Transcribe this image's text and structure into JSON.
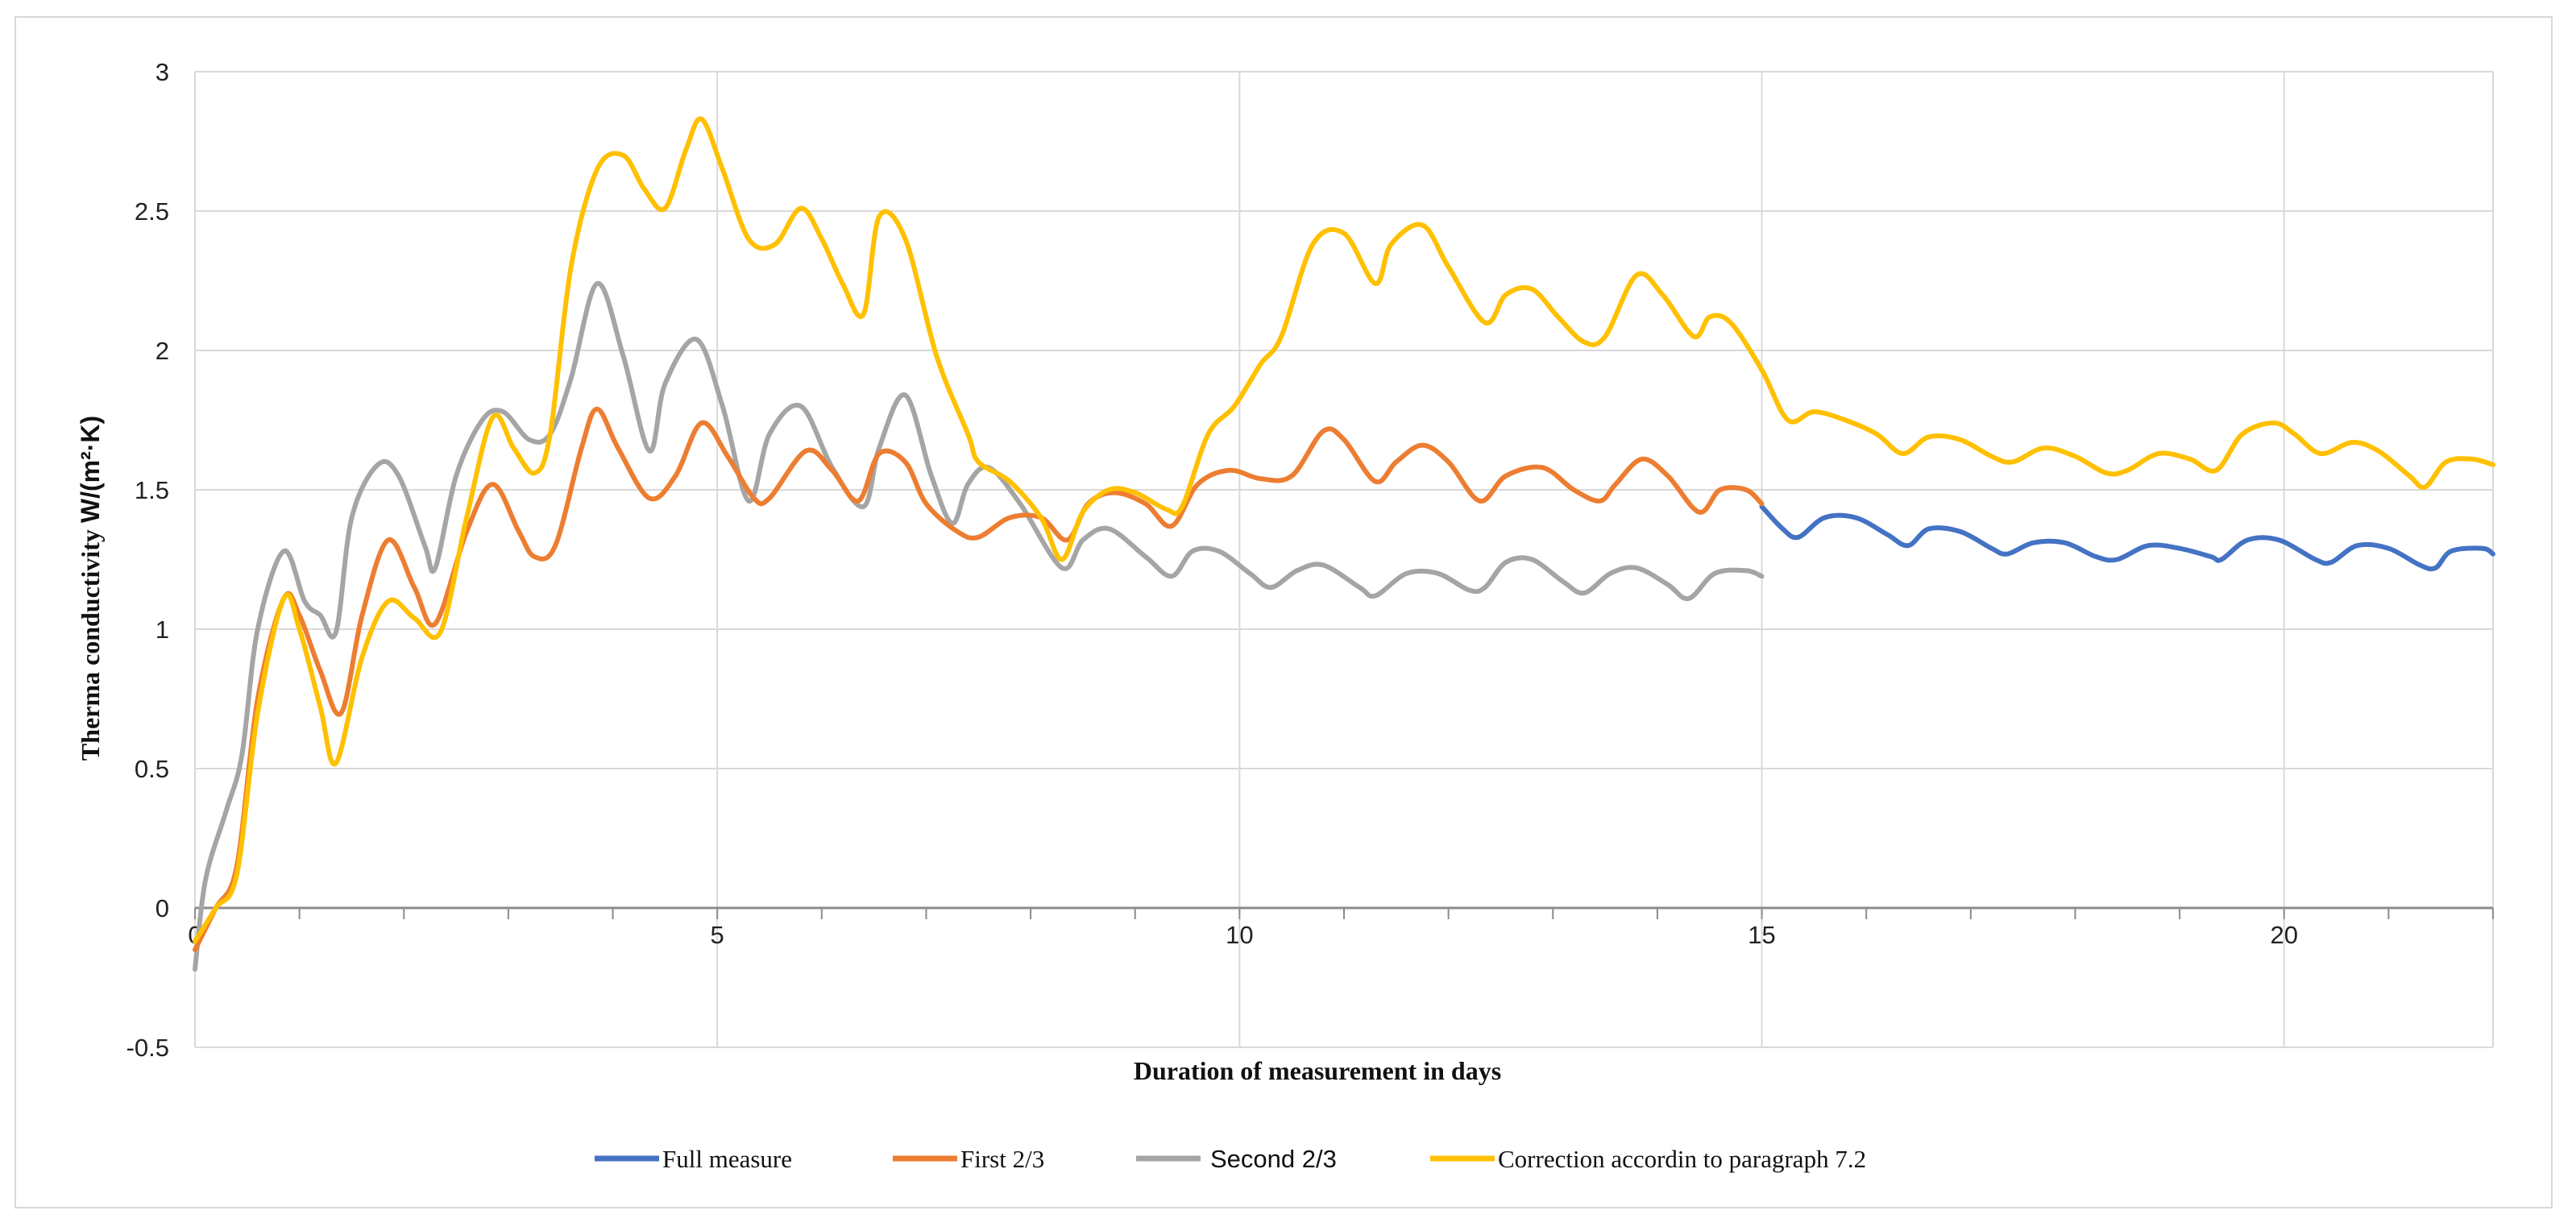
{
  "chart_data": {
    "type": "line",
    "title": "",
    "xlabel": "Duration of measurement in days",
    "ylabel_prefix": "Therma conductivity ",
    "ylabel_unit": "W/(m²·K)",
    "xlim": [
      0,
      22
    ],
    "ylim": [
      -0.5,
      3
    ],
    "x_ticks": [
      0,
      5,
      10,
      15,
      20
    ],
    "x_tick_labels": [
      "0",
      "5",
      "10",
      "15",
      "20"
    ],
    "y_ticks": [
      -0.5,
      0,
      0.5,
      1,
      1.5,
      2,
      2.5,
      3
    ],
    "y_tick_labels": [
      "-0.5",
      "0",
      "0.5",
      "1",
      "1.5",
      "2",
      "2.5",
      "3"
    ],
    "grid": true,
    "legend_position": "bottom",
    "series": [
      {
        "name": "Full measure",
        "color": "#4472c4",
        "points": [
          [
            15.0,
            1.44
          ],
          [
            15.2,
            1.36
          ],
          [
            15.35,
            1.33
          ],
          [
            15.6,
            1.4
          ],
          [
            15.9,
            1.4
          ],
          [
            16.2,
            1.34
          ],
          [
            16.4,
            1.3
          ],
          [
            16.6,
            1.36
          ],
          [
            16.9,
            1.35
          ],
          [
            17.2,
            1.29
          ],
          [
            17.35,
            1.27
          ],
          [
            17.6,
            1.31
          ],
          [
            17.9,
            1.31
          ],
          [
            18.2,
            1.26
          ],
          [
            18.4,
            1.25
          ],
          [
            18.7,
            1.3
          ],
          [
            19.0,
            1.29
          ],
          [
            19.3,
            1.26
          ],
          [
            19.4,
            1.25
          ],
          [
            19.65,
            1.32
          ],
          [
            19.95,
            1.32
          ],
          [
            20.3,
            1.25
          ],
          [
            20.45,
            1.24
          ],
          [
            20.7,
            1.3
          ],
          [
            21.0,
            1.29
          ],
          [
            21.3,
            1.23
          ],
          [
            21.45,
            1.22
          ],
          [
            21.6,
            1.28
          ],
          [
            21.9,
            1.29
          ],
          [
            22.0,
            1.27
          ]
        ]
      },
      {
        "name": "First 2/3",
        "color": "#ed7d31",
        "points": [
          [
            0.0,
            -0.15
          ],
          [
            0.2,
            0.0
          ],
          [
            0.4,
            0.15
          ],
          [
            0.6,
            0.75
          ],
          [
            0.85,
            1.11
          ],
          [
            1.0,
            1.05
          ],
          [
            1.2,
            0.85
          ],
          [
            1.4,
            0.7
          ],
          [
            1.6,
            1.05
          ],
          [
            1.85,
            1.32
          ],
          [
            2.1,
            1.15
          ],
          [
            2.3,
            1.02
          ],
          [
            2.6,
            1.35
          ],
          [
            2.85,
            1.52
          ],
          [
            3.1,
            1.35
          ],
          [
            3.25,
            1.26
          ],
          [
            3.45,
            1.3
          ],
          [
            3.7,
            1.65
          ],
          [
            3.85,
            1.79
          ],
          [
            4.05,
            1.65
          ],
          [
            4.35,
            1.47
          ],
          [
            4.6,
            1.55
          ],
          [
            4.85,
            1.74
          ],
          [
            5.1,
            1.62
          ],
          [
            5.35,
            1.47
          ],
          [
            5.5,
            1.47
          ],
          [
            5.85,
            1.64
          ],
          [
            6.1,
            1.57
          ],
          [
            6.35,
            1.46
          ],
          [
            6.55,
            1.63
          ],
          [
            6.8,
            1.6
          ],
          [
            7.0,
            1.45
          ],
          [
            7.3,
            1.35
          ],
          [
            7.5,
            1.33
          ],
          [
            7.8,
            1.4
          ],
          [
            8.1,
            1.4
          ],
          [
            8.35,
            1.32
          ],
          [
            8.55,
            1.45
          ],
          [
            8.8,
            1.49
          ],
          [
            9.1,
            1.45
          ],
          [
            9.35,
            1.37
          ],
          [
            9.6,
            1.52
          ],
          [
            9.9,
            1.57
          ],
          [
            10.2,
            1.54
          ],
          [
            10.5,
            1.55
          ],
          [
            10.8,
            1.71
          ],
          [
            11.0,
            1.68
          ],
          [
            11.3,
            1.53
          ],
          [
            11.5,
            1.6
          ],
          [
            11.75,
            1.66
          ],
          [
            12.0,
            1.6
          ],
          [
            12.3,
            1.46
          ],
          [
            12.55,
            1.55
          ],
          [
            12.9,
            1.58
          ],
          [
            13.2,
            1.5
          ],
          [
            13.45,
            1.46
          ],
          [
            13.6,
            1.52
          ],
          [
            13.85,
            1.61
          ],
          [
            14.1,
            1.55
          ],
          [
            14.4,
            1.42
          ],
          [
            14.6,
            1.5
          ],
          [
            14.85,
            1.5
          ],
          [
            15.0,
            1.45
          ]
        ]
      },
      {
        "name": "Second 2/3",
        "color": "#a5a5a5",
        "points": [
          [
            0.0,
            -0.22
          ],
          [
            0.1,
            0.1
          ],
          [
            0.3,
            0.35
          ],
          [
            0.45,
            0.55
          ],
          [
            0.6,
            1.0
          ],
          [
            0.85,
            1.28
          ],
          [
            1.05,
            1.1
          ],
          [
            1.2,
            1.05
          ],
          [
            1.35,
            0.99
          ],
          [
            1.5,
            1.4
          ],
          [
            1.75,
            1.59
          ],
          [
            1.95,
            1.55
          ],
          [
            2.2,
            1.3
          ],
          [
            2.3,
            1.22
          ],
          [
            2.5,
            1.55
          ],
          [
            2.75,
            1.75
          ],
          [
            2.95,
            1.78
          ],
          [
            3.2,
            1.68
          ],
          [
            3.4,
            1.7
          ],
          [
            3.6,
            1.9
          ],
          [
            3.85,
            2.24
          ],
          [
            4.1,
            1.98
          ],
          [
            4.35,
            1.64
          ],
          [
            4.5,
            1.88
          ],
          [
            4.8,
            2.04
          ],
          [
            5.05,
            1.8
          ],
          [
            5.3,
            1.46
          ],
          [
            5.5,
            1.7
          ],
          [
            5.8,
            1.8
          ],
          [
            6.1,
            1.58
          ],
          [
            6.4,
            1.44
          ],
          [
            6.55,
            1.65
          ],
          [
            6.8,
            1.84
          ],
          [
            7.05,
            1.55
          ],
          [
            7.25,
            1.38
          ],
          [
            7.4,
            1.52
          ],
          [
            7.6,
            1.58
          ],
          [
            7.9,
            1.45
          ],
          [
            8.3,
            1.22
          ],
          [
            8.5,
            1.32
          ],
          [
            8.75,
            1.36
          ],
          [
            9.1,
            1.26
          ],
          [
            9.35,
            1.19
          ],
          [
            9.55,
            1.28
          ],
          [
            9.8,
            1.28
          ],
          [
            10.1,
            1.2
          ],
          [
            10.3,
            1.15
          ],
          [
            10.55,
            1.21
          ],
          [
            10.8,
            1.23
          ],
          [
            11.15,
            1.15
          ],
          [
            11.3,
            1.12
          ],
          [
            11.6,
            1.2
          ],
          [
            11.9,
            1.2
          ],
          [
            12.2,
            1.14
          ],
          [
            12.35,
            1.15
          ],
          [
            12.55,
            1.24
          ],
          [
            12.8,
            1.25
          ],
          [
            13.1,
            1.17
          ],
          [
            13.3,
            1.13
          ],
          [
            13.55,
            1.2
          ],
          [
            13.8,
            1.22
          ],
          [
            14.1,
            1.16
          ],
          [
            14.3,
            1.11
          ],
          [
            14.55,
            1.2
          ],
          [
            14.85,
            1.21
          ],
          [
            15.0,
            1.19
          ]
        ]
      },
      {
        "name": "Correction accordin to paragraph 7.2",
        "color": "#ffc000",
        "points": [
          [
            0.0,
            -0.12
          ],
          [
            0.2,
            0.0
          ],
          [
            0.4,
            0.12
          ],
          [
            0.6,
            0.7
          ],
          [
            0.85,
            1.11
          ],
          [
            1.0,
            1.0
          ],
          [
            1.2,
            0.72
          ],
          [
            1.35,
            0.52
          ],
          [
            1.6,
            0.9
          ],
          [
            1.85,
            1.1
          ],
          [
            2.1,
            1.04
          ],
          [
            2.35,
            0.99
          ],
          [
            2.6,
            1.4
          ],
          [
            2.85,
            1.76
          ],
          [
            3.05,
            1.65
          ],
          [
            3.25,
            1.56
          ],
          [
            3.4,
            1.7
          ],
          [
            3.6,
            2.3
          ],
          [
            3.85,
            2.65
          ],
          [
            4.1,
            2.7
          ],
          [
            4.3,
            2.58
          ],
          [
            4.5,
            2.51
          ],
          [
            4.7,
            2.72
          ],
          [
            4.85,
            2.83
          ],
          [
            5.05,
            2.65
          ],
          [
            5.3,
            2.4
          ],
          [
            5.55,
            2.38
          ],
          [
            5.8,
            2.51
          ],
          [
            6.0,
            2.4
          ],
          [
            6.2,
            2.24
          ],
          [
            6.4,
            2.13
          ],
          [
            6.55,
            2.48
          ],
          [
            6.8,
            2.4
          ],
          [
            7.1,
            1.98
          ],
          [
            7.4,
            1.7
          ],
          [
            7.5,
            1.6
          ],
          [
            7.8,
            1.53
          ],
          [
            8.1,
            1.4
          ],
          [
            8.3,
            1.25
          ],
          [
            8.5,
            1.42
          ],
          [
            8.75,
            1.5
          ],
          [
            9.0,
            1.49
          ],
          [
            9.3,
            1.43
          ],
          [
            9.45,
            1.44
          ],
          [
            9.7,
            1.7
          ],
          [
            9.95,
            1.8
          ],
          [
            10.2,
            1.95
          ],
          [
            10.4,
            2.05
          ],
          [
            10.7,
            2.38
          ],
          [
            11.0,
            2.42
          ],
          [
            11.3,
            2.24
          ],
          [
            11.45,
            2.38
          ],
          [
            11.75,
            2.45
          ],
          [
            12.0,
            2.3
          ],
          [
            12.35,
            2.1
          ],
          [
            12.55,
            2.2
          ],
          [
            12.8,
            2.22
          ],
          [
            13.05,
            2.12
          ],
          [
            13.3,
            2.03
          ],
          [
            13.5,
            2.05
          ],
          [
            13.8,
            2.27
          ],
          [
            14.05,
            2.2
          ],
          [
            14.35,
            2.05
          ],
          [
            14.5,
            2.12
          ],
          [
            14.7,
            2.1
          ],
          [
            15.0,
            1.93
          ],
          [
            15.25,
            1.75
          ],
          [
            15.5,
            1.78
          ],
          [
            15.8,
            1.75
          ],
          [
            16.1,
            1.7
          ],
          [
            16.35,
            1.63
          ],
          [
            16.6,
            1.69
          ],
          [
            16.9,
            1.68
          ],
          [
            17.2,
            1.62
          ],
          [
            17.4,
            1.6
          ],
          [
            17.7,
            1.65
          ],
          [
            18.0,
            1.62
          ],
          [
            18.3,
            1.56
          ],
          [
            18.5,
            1.57
          ],
          [
            18.8,
            1.63
          ],
          [
            19.1,
            1.61
          ],
          [
            19.35,
            1.57
          ],
          [
            19.6,
            1.7
          ],
          [
            19.9,
            1.74
          ],
          [
            20.1,
            1.7
          ],
          [
            20.35,
            1.63
          ],
          [
            20.65,
            1.67
          ],
          [
            20.9,
            1.64
          ],
          [
            21.2,
            1.55
          ],
          [
            21.35,
            1.51
          ],
          [
            21.55,
            1.6
          ],
          [
            21.8,
            1.61
          ],
          [
            22.0,
            1.59
          ]
        ]
      }
    ]
  }
}
